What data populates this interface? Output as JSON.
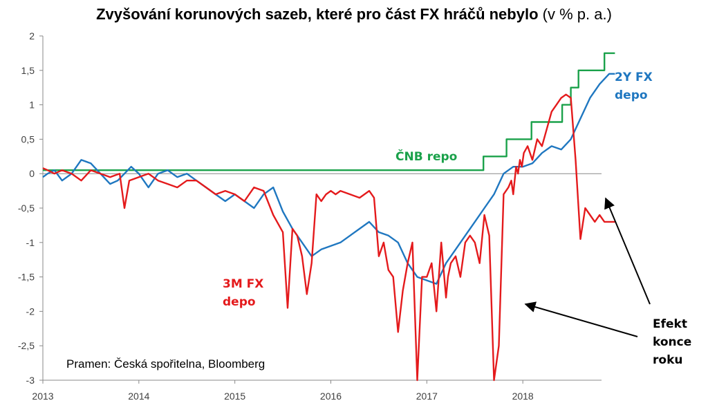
{
  "title": {
    "main": "Zvyšování korunových sazeb, které pro část FX hráčů nebylo",
    "unit": "(v % p. a.)"
  },
  "source": "Pramen: Česká spořitelna, Bloomberg",
  "chart_data": {
    "type": "line",
    "xlabel": "",
    "ylabel": "",
    "xlim": [
      2013.0,
      2019.0
    ],
    "ylim": [
      -3,
      2
    ],
    "y_ticks": [
      "-3",
      "-2,5",
      "-2",
      "-1,5",
      "-1",
      "-0,5",
      "0",
      "0,5",
      "1",
      "1,5",
      "2"
    ],
    "x_ticks": [
      "2013",
      "2014",
      "2015",
      "2016",
      "2017",
      "2018"
    ],
    "grid": false,
    "series": [
      {
        "name": "ČNB repo",
        "color": "#1aa14a",
        "step": true,
        "x": [
          2013.0,
          2017.59,
          2017.59,
          2017.83,
          2017.83,
          2018.09,
          2018.09,
          2018.41,
          2018.41,
          2018.5,
          2018.5,
          2018.58,
          2018.58,
          2018.7,
          2018.7,
          2018.85,
          2018.85,
          2018.96
        ],
        "values": [
          0.05,
          0.05,
          0.25,
          0.25,
          0.5,
          0.5,
          0.75,
          0.75,
          1.0,
          1.0,
          1.25,
          1.25,
          1.5,
          1.5,
          1.5,
          1.5,
          1.75,
          1.75
        ]
      },
      {
        "name": "2Y FX depo",
        "color": "#1f77c0",
        "x": [
          2013.0,
          2013.05,
          2013.12,
          2013.2,
          2013.3,
          2013.4,
          2013.5,
          2013.6,
          2013.7,
          2013.78,
          2013.85,
          2013.92,
          2014.0,
          2014.1,
          2014.2,
          2014.3,
          2014.4,
          2014.5,
          2014.6,
          2014.7,
          2014.8,
          2014.9,
          2015.0,
          2015.1,
          2015.2,
          2015.3,
          2015.4,
          2015.5,
          2015.6,
          2015.7,
          2015.8,
          2015.9,
          2016.0,
          2016.1,
          2016.2,
          2016.3,
          2016.4,
          2016.5,
          2016.6,
          2016.7,
          2016.8,
          2016.9,
          2017.0,
          2017.1,
          2017.2,
          2017.3,
          2017.4,
          2017.5,
          2017.6,
          2017.7,
          2017.8,
          2017.9,
          2018.0,
          2018.1,
          2018.2,
          2018.3,
          2018.4,
          2018.5,
          2018.6,
          2018.7,
          2018.8,
          2018.9,
          2018.96
        ],
        "values": [
          -0.05,
          0.0,
          0.05,
          -0.1,
          0.0,
          0.2,
          0.15,
          0.0,
          -0.15,
          -0.1,
          0.0,
          0.1,
          0.0,
          -0.2,
          0.0,
          0.05,
          -0.05,
          0.0,
          -0.1,
          -0.2,
          -0.3,
          -0.4,
          -0.3,
          -0.4,
          -0.5,
          -0.3,
          -0.2,
          -0.55,
          -0.8,
          -1.0,
          -1.2,
          -1.1,
          -1.05,
          -1.0,
          -0.9,
          -0.8,
          -0.7,
          -0.85,
          -0.9,
          -1.0,
          -1.3,
          -1.5,
          -1.55,
          -1.6,
          -1.3,
          -1.1,
          -0.9,
          -0.7,
          -0.5,
          -0.3,
          0.0,
          0.1,
          0.1,
          0.15,
          0.3,
          0.4,
          0.35,
          0.5,
          0.8,
          1.1,
          1.3,
          1.45,
          1.45
        ]
      },
      {
        "name": "3M FX depo",
        "color": "#e41a1c",
        "x": [
          2013.0,
          2013.05,
          2013.12,
          2013.2,
          2013.3,
          2013.4,
          2013.5,
          2013.6,
          2013.7,
          2013.8,
          2013.85,
          2013.9,
          2014.0,
          2014.1,
          2014.2,
          2014.3,
          2014.4,
          2014.5,
          2014.6,
          2014.7,
          2014.8,
          2014.9,
          2015.0,
          2015.1,
          2015.2,
          2015.3,
          2015.4,
          2015.5,
          2015.55,
          2015.6,
          2015.65,
          2015.7,
          2015.75,
          2015.8,
          2015.85,
          2015.9,
          2015.95,
          2016.0,
          2016.05,
          2016.1,
          2016.2,
          2016.3,
          2016.4,
          2016.45,
          2016.5,
          2016.55,
          2016.6,
          2016.65,
          2016.7,
          2016.75,
          2016.8,
          2016.85,
          2016.9,
          2016.95,
          2017.0,
          2017.05,
          2017.1,
          2017.15,
          2017.2,
          2017.22,
          2017.25,
          2017.3,
          2017.35,
          2017.4,
          2017.45,
          2017.5,
          2017.55,
          2017.6,
          2017.65,
          2017.7,
          2017.75,
          2017.8,
          2017.85,
          2017.88,
          2017.9,
          2017.93,
          2017.95,
          2017.97,
          2017.99,
          2018.01,
          2018.05,
          2018.1,
          2018.15,
          2018.2,
          2018.3,
          2018.35,
          2018.4,
          2018.45,
          2018.5,
          2018.55,
          2018.6,
          2018.65,
          2018.7,
          2018.75,
          2018.8,
          2018.85,
          2018.88,
          2018.91,
          2018.94,
          2018.96
        ],
        "values": [
          0.08,
          0.05,
          0.0,
          0.05,
          0.0,
          -0.1,
          0.05,
          0.0,
          -0.05,
          0.0,
          -0.5,
          -0.1,
          -0.05,
          0.0,
          -0.1,
          -0.15,
          -0.2,
          -0.1,
          -0.1,
          -0.2,
          -0.3,
          -0.25,
          -0.3,
          -0.4,
          -0.2,
          -0.25,
          -0.6,
          -0.85,
          -1.95,
          -0.8,
          -0.9,
          -1.2,
          -1.75,
          -1.3,
          -0.3,
          -0.4,
          -0.3,
          -0.25,
          -0.3,
          -0.25,
          -0.3,
          -0.35,
          -0.25,
          -0.35,
          -1.2,
          -1.0,
          -1.4,
          -1.5,
          -2.3,
          -1.7,
          -1.3,
          -1.0,
          -3.0,
          -1.5,
          -1.5,
          -1.3,
          -2.0,
          -1.0,
          -1.8,
          -1.5,
          -1.3,
          -1.2,
          -1.5,
          -1.0,
          -0.9,
          -1.0,
          -1.3,
          -0.6,
          -0.9,
          -3.0,
          -2.5,
          -0.3,
          -0.2,
          -0.1,
          -0.3,
          0.1,
          0.0,
          0.2,
          0.1,
          0.3,
          0.4,
          0.2,
          0.5,
          0.4,
          0.9,
          1.0,
          1.1,
          1.15,
          1.1,
          0.2,
          -0.95,
          -0.5,
          -0.6,
          -0.7,
          -0.6,
          -0.7,
          -0.7,
          -0.7,
          -0.7,
          -0.7
        ]
      }
    ],
    "annotations": [
      {
        "text": "ČNB repo",
        "color": "#1aa14a"
      },
      {
        "lines": [
          "2Y FX",
          "depo"
        ],
        "color": "#1f77c0"
      },
      {
        "lines": [
          "3M FX",
          "depo"
        ],
        "color": "#e41a1c"
      },
      {
        "lines": [
          "Efekt",
          "konce",
          "roku"
        ],
        "color": "#000000"
      }
    ]
  }
}
